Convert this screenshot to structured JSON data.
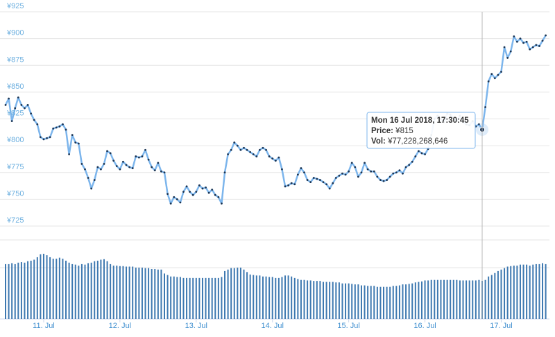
{
  "chart_data": {
    "type": "line",
    "categories": [
      null,
      null,
      null,
      null,
      null,
      null,
      null,
      null,
      null,
      null,
      null,
      null,
      "11. Jul",
      null,
      null,
      null,
      null,
      null,
      null,
      null,
      null,
      null,
      null,
      null,
      null,
      null,
      null,
      null,
      null,
      null,
      null,
      null,
      null,
      null,
      null,
      null,
      "12. Jul",
      null,
      null,
      null,
      null,
      null,
      null,
      null,
      null,
      null,
      null,
      null,
      null,
      null,
      null,
      null,
      null,
      null,
      null,
      null,
      null,
      null,
      null,
      null,
      "13. Jul",
      null,
      null,
      null,
      null,
      null,
      null,
      null,
      null,
      null,
      null,
      null,
      null,
      null,
      null,
      null,
      null,
      null,
      null,
      null,
      null,
      null,
      null,
      null,
      "14. Jul",
      null,
      null,
      null,
      null,
      null,
      null,
      null,
      null,
      null,
      null,
      null,
      null,
      null,
      null,
      null,
      null,
      null,
      null,
      null,
      null,
      null,
      null,
      null,
      "15. Jul",
      null,
      null,
      null,
      null,
      null,
      null,
      null,
      null,
      null,
      null,
      null,
      null,
      null,
      null,
      null,
      null,
      null,
      null,
      null,
      null,
      null,
      null,
      null,
      "16. Jul",
      null,
      null,
      null,
      null,
      null,
      null,
      null,
      null,
      null,
      null,
      null,
      null,
      null,
      null,
      null,
      null,
      null,
      null,
      null,
      null,
      null,
      null,
      null,
      "17. Jul",
      null,
      null,
      null,
      null,
      null,
      null,
      null,
      null,
      null,
      null,
      null,
      null,
      null,
      null
    ],
    "series": [
      {
        "name": "Price",
        "color": "#7cb5ec",
        "values": [
          838,
          844,
          823,
          835,
          845,
          838,
          835,
          838,
          830,
          824,
          820,
          808,
          806,
          807,
          808,
          816,
          817,
          818,
          820,
          815,
          792,
          810,
          803,
          802,
          783,
          778,
          770,
          760,
          768,
          780,
          778,
          783,
          795,
          793,
          786,
          781,
          778,
          785,
          782,
          780,
          779,
          790,
          789,
          790,
          796,
          787,
          780,
          777,
          784,
          776,
          775,
          755,
          746,
          752,
          750,
          747,
          757,
          762,
          757,
          754,
          757,
          763,
          760,
          761,
          756,
          759,
          754,
          752,
          746,
          775,
          792,
          796,
          803,
          800,
          796,
          798,
          796,
          794,
          792,
          790,
          796,
          798,
          796,
          790,
          788,
          786,
          789,
          778,
          762,
          763,
          765,
          764,
          773,
          779,
          775,
          768,
          766,
          770,
          769,
          768,
          766,
          764,
          760,
          765,
          770,
          772,
          774,
          773,
          776,
          784,
          780,
          771,
          775,
          784,
          778,
          776,
          776,
          771,
          768,
          767,
          768,
          771,
          774,
          775,
          777,
          774,
          780,
          782,
          785,
          790,
          795,
          793,
          792,
          797,
          810,
          825,
          828,
          825,
          822,
          830,
          829,
          826,
          823,
          828,
          822,
          820,
          819,
          823,
          818,
          820,
          815,
          836,
          860,
          867,
          863,
          866,
          869,
          892,
          882,
          888,
          902,
          897,
          900,
          896,
          897,
          890,
          892,
          894,
          893,
          898,
          903
        ]
      },
      {
        "name": "Vol",
        "color": "#3d78b0",
        "values": [
          111000000000.0,
          111000000000.0,
          113000000000.0,
          111000000000.0,
          114000000000.0,
          115000000000.0,
          114000000000.0,
          117000000000.0,
          118000000000.0,
          120000000000.0,
          125000000000.0,
          131000000000.0,
          132000000000.0,
          129000000000.0,
          125000000000.0,
          122000000000.0,
          122000000000.0,
          124000000000.0,
          122000000000.0,
          118000000000.0,
          114000000000.0,
          111000000000.0,
          110000000000.0,
          108000000000.0,
          111000000000.0,
          110000000000.0,
          113000000000.0,
          114000000000.0,
          117000000000.0,
          118000000000.0,
          120000000000.0,
          121000000000.0,
          117000000000.0,
          111000000000.0,
          108000000000.0,
          108000000000.0,
          107000000000.0,
          107000000000.0,
          106000000000.0,
          106000000000.0,
          106000000000.0,
          104000000000.0,
          104000000000.0,
          104000000000.0,
          103000000000.0,
          103000000000.0,
          101000000000.0,
          101000000000.0,
          100000000000.0,
          100000000000.0,
          92000000000.0,
          89000000000.0,
          86000000000.0,
          86000000000.0,
          85000000000.0,
          85000000000.0,
          83000000000.0,
          83000000000.0,
          83000000000.0,
          83000000000.0,
          83000000000.0,
          83000000000.0,
          83000000000.0,
          83000000000.0,
          83000000000.0,
          83000000000.0,
          83000000000.0,
          83000000000.0,
          85000000000.0,
          97000000000.0,
          100000000000.0,
          103000000000.0,
          103000000000.0,
          104000000000.0,
          104000000000.0,
          100000000000.0,
          95000000000.0,
          90000000000.0,
          89000000000.0,
          88000000000.0,
          88000000000.0,
          86000000000.0,
          86000000000.0,
          85000000000.0,
          85000000000.0,
          83000000000.0,
          83000000000.0,
          85000000000.0,
          88000000000.0,
          88000000000.0,
          86000000000.0,
          83000000000.0,
          81000000000.0,
          79000000000.0,
          79000000000.0,
          78000000000.0,
          78000000000.0,
          77000000000.0,
          77000000000.0,
          77000000000.0,
          75000000000.0,
          75000000000.0,
          75000000000.0,
          75000000000.0,
          74000000000.0,
          74000000000.0,
          72000000000.0,
          72000000000.0,
          72000000000.0,
          71000000000.0,
          70000000000.0,
          70000000000.0,
          68000000000.0,
          68000000000.0,
          67000000000.0,
          67000000000.0,
          67000000000.0,
          65000000000.0,
          65000000000.0,
          65000000000.0,
          65000000000.0,
          65000000000.0,
          67000000000.0,
          67000000000.0,
          68000000000.0,
          70000000000.0,
          70000000000.0,
          71000000000.0,
          72000000000.0,
          74000000000.0,
          75000000000.0,
          76000000000.0,
          78000000000.0,
          78000000000.0,
          79000000000.0,
          79000000000.0,
          79000000000.0,
          79000000000.0,
          79000000000.0,
          79000000000.0,
          79000000000.0,
          79000000000.0,
          79000000000.0,
          78000000000.0,
          78000000000.0,
          78000000000.0,
          78000000000.0,
          78000000000.0,
          78000000000.0,
          79000000000.0,
          77228268646,
          79000000000.0,
          86000000000.0,
          89000000000.0,
          93000000000.0,
          97000000000.0,
          100000000000.0,
          103000000000.0,
          106000000000.0,
          107000000000.0,
          108000000000.0,
          108000000000.0,
          110000000000.0,
          110000000000.0,
          110000000000.0,
          108000000000.0,
          110000000000.0,
          111000000000.0,
          111000000000.0,
          113000000000.0,
          111000000000.0
        ]
      }
    ],
    "ylim": [
      725,
      925
    ],
    "yticks": [
      {
        "value": 725,
        "label": "¥725"
      },
      {
        "value": 750,
        "label": "¥750"
      },
      {
        "value": 775,
        "label": "¥775"
      },
      {
        "value": 800,
        "label": "¥800"
      },
      {
        "value": 825,
        "label": "¥825"
      },
      {
        "value": 850,
        "label": "¥850"
      },
      {
        "value": 875,
        "label": "¥875"
      },
      {
        "value": 900,
        "label": "¥900"
      },
      {
        "value": 925,
        "label": "¥925"
      }
    ],
    "volume_ylim": [
      0,
      160000000000.0
    ],
    "grid": true,
    "tooltip": {
      "date": "Mon 16 Jul 2018, 17:30:45",
      "price_label": "Price:",
      "price": "¥815",
      "vol_label": "Vol:",
      "vol": "¥77,228,268,646"
    }
  }
}
